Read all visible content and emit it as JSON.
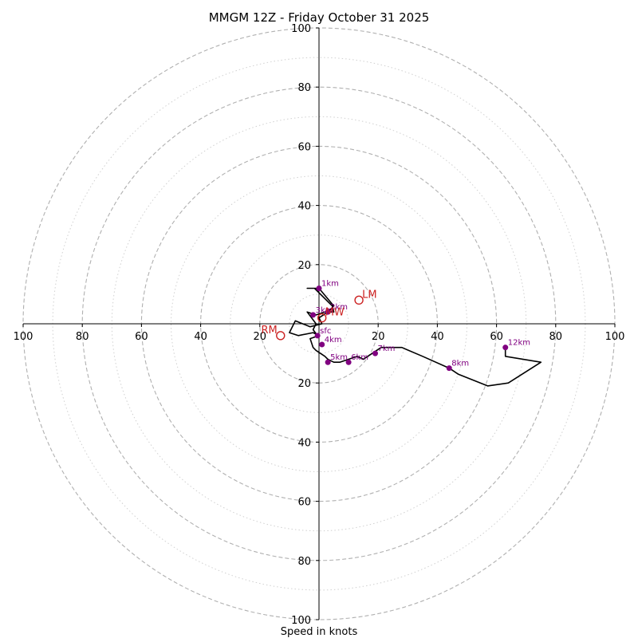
{
  "chart_data": {
    "type": "hodograph",
    "title": "MMGM 12Z - Friday October 31 2025",
    "xlabel": "Speed in knots",
    "units": "knots",
    "range": [
      -100,
      100
    ],
    "ring_major": [
      20,
      40,
      60,
      80,
      100
    ],
    "ring_minor": [
      10,
      30,
      50,
      70,
      90
    ],
    "ticks": {
      "x": [
        {
          "v": -100,
          "label": "100"
        },
        {
          "v": -80,
          "label": "80"
        },
        {
          "v": -60,
          "label": "60"
        },
        {
          "v": -40,
          "label": "40"
        },
        {
          "v": -20,
          "label": "20"
        },
        {
          "v": 20,
          "label": "20"
        },
        {
          "v": 40,
          "label": "40"
        },
        {
          "v": 60,
          "label": "60"
        },
        {
          "v": 80,
          "label": "80"
        },
        {
          "v": 100,
          "label": "100"
        }
      ],
      "y_top": [
        {
          "v": 20,
          "label": "20"
        },
        {
          "v": 40,
          "label": "40"
        },
        {
          "v": 60,
          "label": "60"
        },
        {
          "v": 80,
          "label": "80"
        },
        {
          "v": 100,
          "label": "100"
        }
      ],
      "y_bottom": [
        {
          "v": -20,
          "label": "20"
        },
        {
          "v": -40,
          "label": "40"
        },
        {
          "v": -60,
          "label": "60"
        },
        {
          "v": -80,
          "label": "80"
        },
        {
          "v": -100,
          "label": "100"
        }
      ]
    },
    "trace": [
      [
        -0.5,
        -4
      ],
      [
        -2,
        -2
      ],
      [
        -1,
        0
      ],
      [
        -4,
        4
      ],
      [
        -1,
        3
      ],
      [
        2,
        4
      ],
      [
        5,
        4
      ],
      [
        4.5,
        6
      ],
      [
        -1.5,
        12
      ],
      [
        -1.5,
        12
      ],
      [
        -4,
        12
      ],
      [
        0,
        12
      ],
      [
        5,
        6
      ],
      [
        3,
        4
      ],
      [
        0,
        2
      ],
      [
        1,
        0
      ],
      [
        -3,
        -1
      ],
      [
        -8,
        1
      ],
      [
        -10,
        -3
      ],
      [
        -7,
        -4
      ],
      [
        -2,
        -3
      ],
      [
        0,
        -4
      ],
      [
        -3,
        -5
      ],
      [
        -2,
        -8
      ],
      [
        -1,
        -9
      ],
      [
        2,
        -11
      ],
      [
        3,
        -12
      ],
      [
        5,
        -13
      ],
      [
        7,
        -13
      ],
      [
        10,
        -12
      ],
      [
        13,
        -11
      ],
      [
        15,
        -12
      ],
      [
        18,
        -10
      ],
      [
        21,
        -8
      ],
      [
        28,
        -8
      ],
      [
        35,
        -11
      ],
      [
        44,
        -15
      ],
      [
        47,
        -17
      ],
      [
        57,
        -21
      ],
      [
        64,
        -20
      ],
      [
        75,
        -13
      ],
      [
        63,
        -11
      ],
      [
        63,
        -8
      ]
    ],
    "heights": [
      {
        "label": "sfc",
        "u": -0.5,
        "v": -4
      },
      {
        "label": "1km",
        "u": 0,
        "v": 12
      },
      {
        "label": "2km",
        "u": 3,
        "v": 4
      },
      {
        "label": "3km",
        "u": -2,
        "v": 3
      },
      {
        "label": "4km",
        "u": 1,
        "v": -7
      },
      {
        "label": "5km",
        "u": 3,
        "v": -13
      },
      {
        "label": "6km",
        "u": 10,
        "v": -13
      },
      {
        "label": "7km",
        "u": 19,
        "v": -10
      },
      {
        "label": "8km",
        "u": 44,
        "v": -15
      },
      {
        "label": "12km",
        "u": 63,
        "v": -8
      }
    ],
    "motion": [
      {
        "label": "LM",
        "u": 13.5,
        "v": 8
      },
      {
        "label": "RM",
        "u": -13,
        "v": -4
      },
      {
        "label": "MW",
        "u": 1,
        "v": 2
      }
    ],
    "colors": {
      "trace": "#000000",
      "height_dot": "#800080",
      "motion": "#cc2222",
      "ring": "#b0b0b0"
    }
  }
}
